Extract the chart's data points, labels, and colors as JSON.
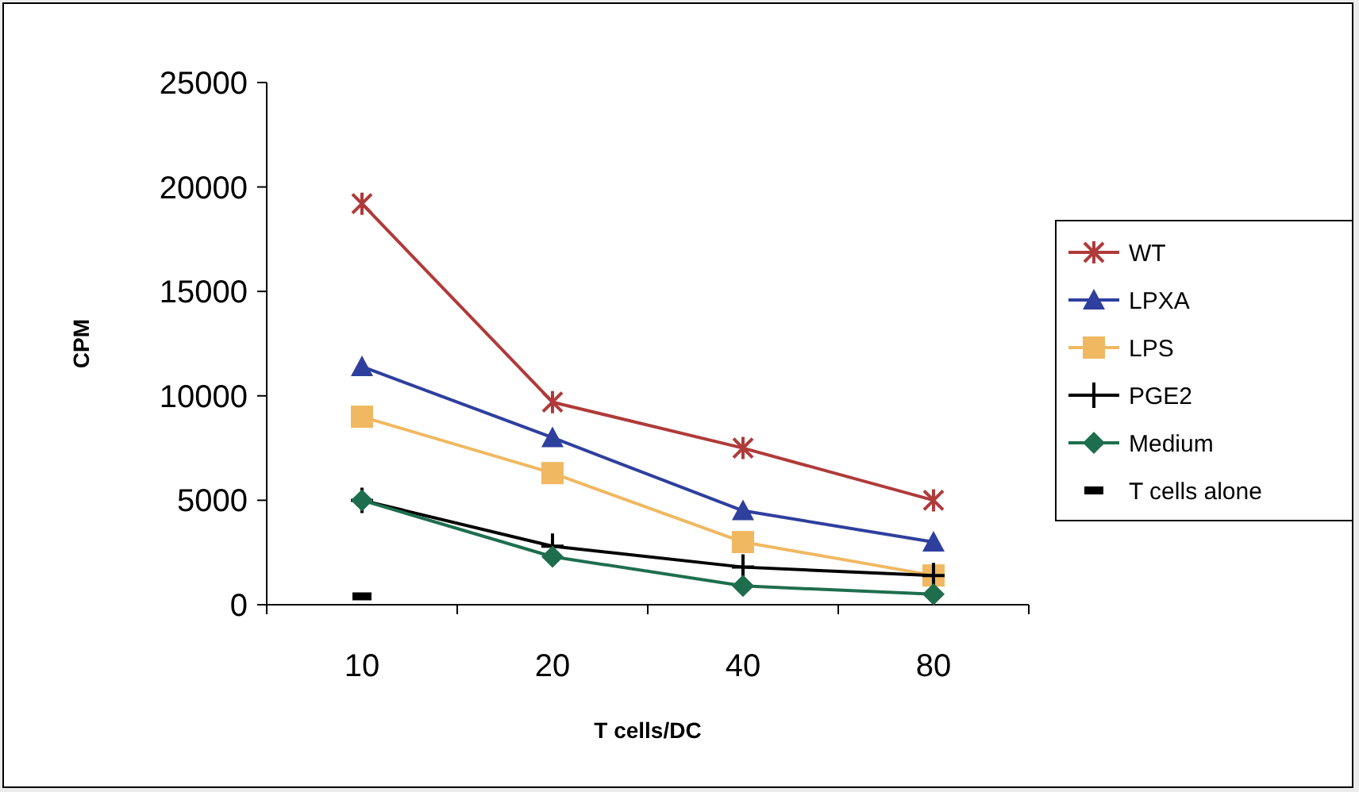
{
  "chart_data": {
    "type": "line",
    "xlabel": "T cells/DC",
    "ylabel": "CPM",
    "categories": [
      "10",
      "20",
      "40",
      "80"
    ],
    "ylim": [
      0,
      25000
    ],
    "yticks": [
      0,
      5000,
      10000,
      15000,
      20000,
      25000
    ],
    "grid": false,
    "legend": "right",
    "series": [
      {
        "name": "WT",
        "color": "#b03a3a",
        "marker": "cross",
        "values": [
          19200,
          9700,
          7500,
          5000
        ]
      },
      {
        "name": "LPXA",
        "color": "#2e3f9e",
        "marker": "triangle",
        "values": [
          11400,
          8000,
          4500,
          3000
        ]
      },
      {
        "name": "LPS",
        "color": "#f0b860",
        "marker": "square",
        "values": [
          9000,
          6300,
          3000,
          1400
        ]
      },
      {
        "name": "PGE2",
        "color": "#000000",
        "marker": "cross",
        "values": [
          5000,
          2800,
          1800,
          1400
        ]
      },
      {
        "name": "Medium",
        "color": "#1e6e4e",
        "marker": "diamond",
        "values": [
          5000,
          2300,
          900,
          500
        ]
      },
      {
        "name": "T cells alone",
        "color": "#000000",
        "type": "scatter",
        "marker": "square",
        "values": [
          400,
          null,
          null,
          null
        ]
      }
    ]
  }
}
